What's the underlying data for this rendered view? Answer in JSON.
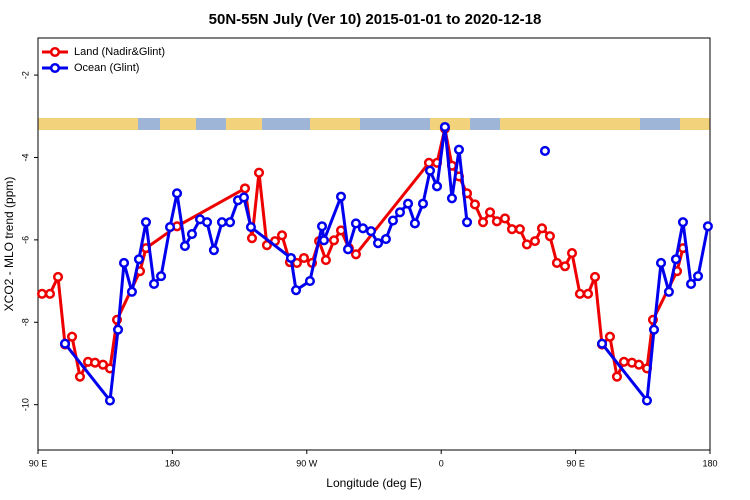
{
  "chart_data": {
    "type": "line",
    "title": "50N-55N July (Ver 10)   2015-01-01 to 2020-12-18",
    "x_label": "Longitude (deg E)",
    "y_label": "XCO2 - MLO trend (ppm)",
    "xlim": [
      90,
      540
    ],
    "xticks": [
      {
        "value": 90,
        "label": "90 E"
      },
      {
        "value": 180,
        "label": "180"
      },
      {
        "value": 270,
        "label": "90 W"
      },
      {
        "value": 360,
        "label": "0"
      },
      {
        "value": 450,
        "label": "90 E"
      },
      {
        "value": 540,
        "label": "180"
      }
    ],
    "ylim": [
      -11.1,
      -1.1
    ],
    "yticks": [
      -2,
      -4,
      -6,
      -8,
      -10
    ],
    "legend": "top-left",
    "series": [
      {
        "name": "Land (Nadir&Glint)",
        "color": "#ee0000",
        "x": [
          92.7,
          98.0,
          103.4,
          108.1,
          112.8,
          118.1,
          123.5,
          128.2,
          133.5,
          138.2,
          142.9,
          158.3,
          162.3,
          183.1,
          228.6,
          233.3,
          238.0,
          243.3,
          248.7,
          253.4,
          258.7,
          263.4,
          268.1,
          273.5,
          278.2,
          282.8,
          288.2,
          292.9,
          298.2,
          302.9,
          351.8,
          357.2,
          362.5,
          367.2,
          371.9,
          377.3,
          382.6,
          388.0,
          392.7,
          397.3,
          402.7,
          407.4,
          412.7,
          417.4,
          422.8,
          427.5,
          432.8,
          437.5,
          442.9,
          447.6,
          452.9,
          458.3,
          463.0,
          467.7,
          473.0,
          477.7,
          482.4,
          487.7,
          492.4,
          497.8,
          501.8,
          517.9,
          521.9
        ],
        "values": [
          -7.31,
          -7.31,
          -6.9,
          -8.54,
          -8.35,
          -9.32,
          -8.96,
          -8.98,
          -9.03,
          -9.12,
          -7.94,
          -6.76,
          -6.2,
          -5.67,
          -4.75,
          -5.96,
          -4.37,
          -6.13,
          -6.03,
          -5.89,
          -6.54,
          -6.56,
          -6.44,
          -6.56,
          -6.03,
          -6.49,
          -6.01,
          -5.77,
          -6.2,
          -6.35,
          -4.13,
          -4.13,
          -3.3,
          -4.2,
          -4.46,
          -4.87,
          -5.14,
          -5.57,
          -5.33,
          -5.55,
          -5.48,
          -5.74,
          -5.74,
          -6.11,
          -6.03,
          -5.72,
          -5.91,
          -6.56,
          -6.64,
          -6.32,
          -7.31,
          -7.31,
          -6.9,
          -8.54,
          -8.35,
          -9.32,
          -8.96,
          -8.98,
          -9.03,
          -9.12,
          -7.94,
          -6.76,
          -6.2
        ]
      },
      {
        "name": "Ocean (Glint)",
        "color": "#0000ee",
        "x": [
          108.1,
          138.2,
          143.6,
          147.6,
          152.9,
          157.6,
          162.3,
          167.7,
          172.4,
          178.4,
          183.1,
          188.4,
          193.1,
          198.5,
          203.2,
          207.8,
          213.2,
          218.6,
          223.9,
          227.9,
          232.6,
          259.4,
          262.8,
          272.1,
          280.2,
          281.5,
          292.9,
          297.6,
          302.9,
          307.6,
          313.0,
          317.7,
          323.0,
          327.7,
          332.4,
          337.8,
          342.4,
          347.8,
          352.5,
          357.2,
          362.5,
          367.2,
          371.9,
          377.3,
          null,
          429.5,
          null,
          467.7,
          497.8,
          502.5,
          507.2,
          512.5,
          517.2,
          521.9,
          527.3,
          532.0,
          538.6
        ],
        "values": [
          -8.52,
          -9.9,
          -8.18,
          -6.56,
          -7.26,
          -6.47,
          -5.57,
          -7.07,
          -6.88,
          -5.69,
          -4.87,
          -6.15,
          -5.86,
          -5.5,
          -5.57,
          -6.25,
          -5.57,
          -5.57,
          -5.04,
          -4.97,
          -5.69,
          -6.44,
          -7.22,
          -7.0,
          -5.67,
          -6.01,
          -4.95,
          -6.23,
          -5.6,
          -5.72,
          -5.79,
          -6.08,
          -5.98,
          -5.53,
          -5.33,
          -5.12,
          -5.6,
          -5.12,
          -4.32,
          -4.7,
          -3.26,
          -4.99,
          -3.81,
          -5.57,
          null,
          -3.84,
          null,
          -8.52,
          -9.9,
          -8.18,
          -6.56,
          -7.26,
          -6.47,
          -5.57,
          -7.07,
          -6.88,
          -5.67
        ]
      }
    ]
  }
}
